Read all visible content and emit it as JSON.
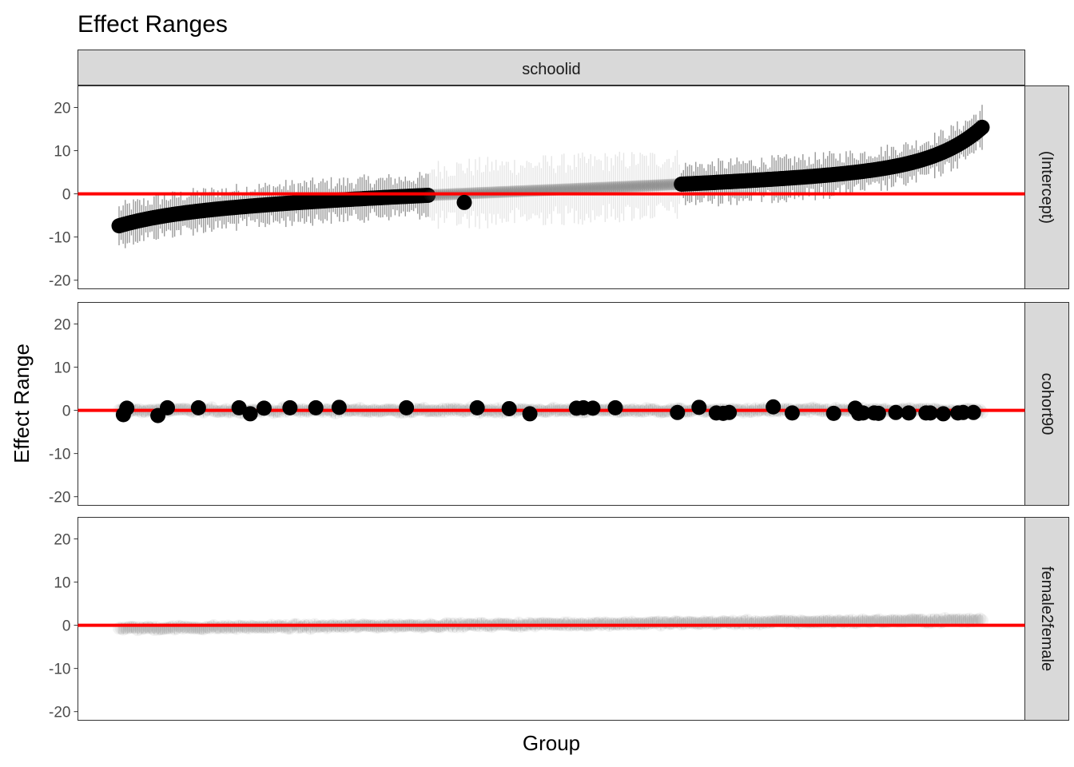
{
  "title": "Effect Ranges",
  "chart_data": {
    "type": "scatter",
    "title": "Effect Ranges",
    "xlabel": "Group",
    "ylabel": "Effect Range",
    "facet_column": "schoolid",
    "ylim": [
      -22,
      25
    ],
    "yticks": [
      -20,
      -10,
      0,
      10,
      20
    ],
    "ytick_labels": [
      "-20",
      "-10",
      "0",
      "10",
      "20"
    ],
    "reference_line": {
      "y": 0,
      "color": "#ff0000"
    },
    "x_ticks_shown": false,
    "grid": false,
    "n_groups": 420,
    "panels": [
      {
        "strip": "(Intercept)",
        "effect": "intercept_sorted",
        "min": -15.5,
        "max": 18.0,
        "interval_halfwidth": 3.5,
        "significant_below_x": 0.36,
        "significant_above_x": 0.65,
        "highlighted_points": [
          {
            "x": 0.4,
            "y": -2.0
          }
        ]
      },
      {
        "strip": "cohort90",
        "effect": "near_zero",
        "spread": 1.0,
        "highlighted_points": [
          {
            "x": 0.005,
            "y": -1.0
          },
          {
            "x": 0.009,
            "y": 0.5
          },
          {
            "x": 0.045,
            "y": -1.2
          },
          {
            "x": 0.056,
            "y": 0.6
          },
          {
            "x": 0.092,
            "y": 0.6
          },
          {
            "x": 0.139,
            "y": 0.6
          },
          {
            "x": 0.152,
            "y": -0.8
          },
          {
            "x": 0.168,
            "y": 0.5
          },
          {
            "x": 0.198,
            "y": 0.6
          },
          {
            "x": 0.228,
            "y": 0.6
          },
          {
            "x": 0.255,
            "y": 0.7
          },
          {
            "x": 0.333,
            "y": 0.6
          },
          {
            "x": 0.415,
            "y": 0.6
          },
          {
            "x": 0.452,
            "y": 0.4
          },
          {
            "x": 0.476,
            "y": -0.8
          },
          {
            "x": 0.53,
            "y": 0.5
          },
          {
            "x": 0.538,
            "y": 0.6
          },
          {
            "x": 0.549,
            "y": 0.5
          },
          {
            "x": 0.575,
            "y": 0.6
          },
          {
            "x": 0.647,
            "y": -0.5
          },
          {
            "x": 0.672,
            "y": 0.7
          },
          {
            "x": 0.692,
            "y": -0.6
          },
          {
            "x": 0.7,
            "y": -0.7
          },
          {
            "x": 0.707,
            "y": -0.5
          },
          {
            "x": 0.758,
            "y": 0.8
          },
          {
            "x": 0.78,
            "y": -0.6
          },
          {
            "x": 0.828,
            "y": -0.7
          },
          {
            "x": 0.853,
            "y": 0.5
          },
          {
            "x": 0.857,
            "y": -0.7
          },
          {
            "x": 0.862,
            "y": -0.6
          },
          {
            "x": 0.875,
            "y": -0.6
          },
          {
            "x": 0.88,
            "y": -0.7
          },
          {
            "x": 0.9,
            "y": -0.5
          },
          {
            "x": 0.915,
            "y": -0.6
          },
          {
            "x": 0.935,
            "y": -0.6
          },
          {
            "x": 0.94,
            "y": -0.6
          },
          {
            "x": 0.955,
            "y": -0.8
          },
          {
            "x": 0.972,
            "y": -0.6
          },
          {
            "x": 0.978,
            "y": -0.5
          },
          {
            "x": 0.99,
            "y": -0.5
          }
        ]
      },
      {
        "strip": "female2female",
        "effect": "near_zero_trend",
        "start": -0.7,
        "end": 1.2,
        "spread": 0.8,
        "highlighted_points": []
      }
    ]
  }
}
